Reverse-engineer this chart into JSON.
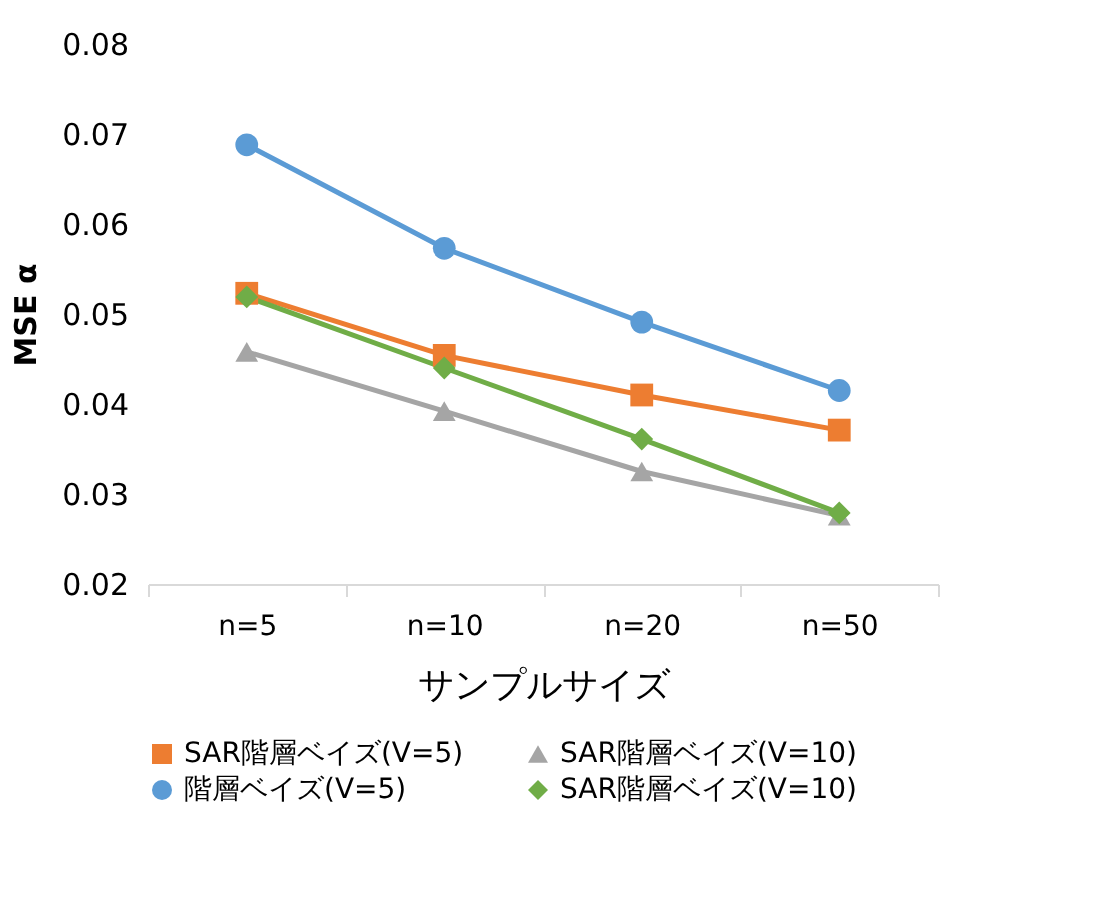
{
  "chart_data": {
    "type": "line",
    "xlabel": "サンプルサイズ",
    "ylabel": "MSE α",
    "categories": [
      "n=5",
      "n=10",
      "n=20",
      "n=50"
    ],
    "ylim": [
      0.02,
      0.08
    ],
    "yticks": [
      0.02,
      0.03,
      0.04,
      0.05,
      0.06,
      0.07,
      0.08
    ],
    "grid": false,
    "legend": "bottom",
    "series": [
      {
        "name": "SAR階層ベイズ(V=5)",
        "color": "#ed7d31",
        "marker": "square",
        "values": [
          0.0523,
          0.0454,
          0.041,
          0.0371
        ]
      },
      {
        "name": "SAR階層ベイズ(V=10)",
        "color": "#a5a5a5",
        "marker": "triangle",
        "values": [
          0.0458,
          0.0392,
          0.0325,
          0.0276
        ]
      },
      {
        "name": "階層ベイズ(V=5)",
        "color": "#5b9bd5",
        "marker": "circle",
        "values": [
          0.0688,
          0.0573,
          0.0491,
          0.0415
        ]
      },
      {
        "name": "SAR階層ベイズ(V=10)",
        "color": "#70ad47",
        "marker": "diamond",
        "values": [
          0.0519,
          0.044,
          0.0361,
          0.0279
        ]
      }
    ]
  }
}
